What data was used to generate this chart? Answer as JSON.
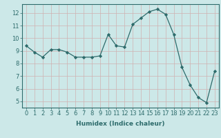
{
  "x": [
    0,
    1,
    2,
    3,
    4,
    5,
    6,
    7,
    8,
    9,
    10,
    11,
    12,
    13,
    14,
    15,
    16,
    17,
    18,
    19,
    20,
    21,
    22,
    23
  ],
  "y": [
    9.4,
    8.9,
    8.5,
    9.1,
    9.1,
    8.9,
    8.5,
    8.5,
    8.5,
    8.6,
    10.3,
    9.4,
    9.3,
    11.1,
    11.6,
    12.1,
    12.3,
    11.9,
    10.3,
    7.7,
    6.3,
    5.3,
    4.9,
    7.4
  ],
  "line_color": "#2d6b6b",
  "marker": "D",
  "marker_size": 2.2,
  "bg_color": "#cce8e8",
  "grid_color": "#b0d0d0",
  "xlabel": "Humidex (Indice chaleur)",
  "ylim": [
    4.5,
    12.7
  ],
  "xlim": [
    -0.5,
    23.5
  ],
  "yticks": [
    5,
    6,
    7,
    8,
    9,
    10,
    11,
    12
  ],
  "xticks": [
    0,
    1,
    2,
    3,
    4,
    5,
    6,
    7,
    8,
    9,
    10,
    11,
    12,
    13,
    14,
    15,
    16,
    17,
    18,
    19,
    20,
    21,
    22,
    23
  ],
  "xlabel_fontsize": 6.5,
  "tick_fontsize": 6.0,
  "line_width": 0.9
}
